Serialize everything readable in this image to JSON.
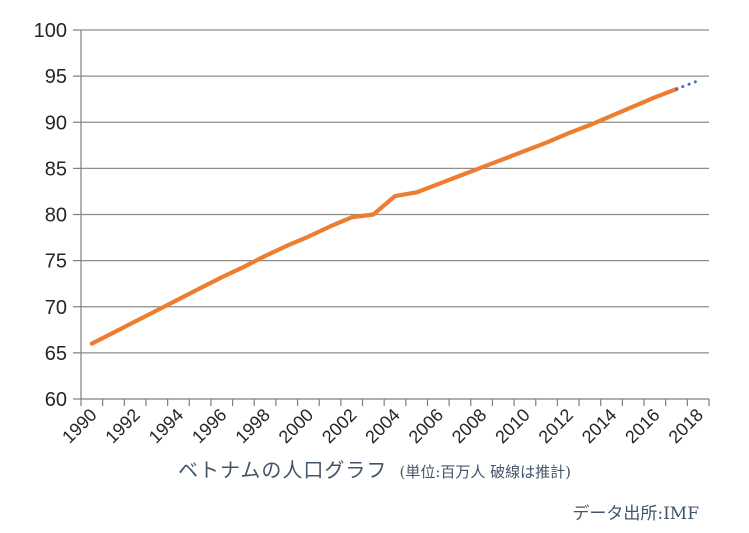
{
  "chart_data": {
    "type": "line",
    "title": "ベトナムの人口グラフ",
    "subtitle": "(単位:百万人 破線は推計)",
    "source": "データ出所:IMF",
    "years": [
      1990,
      1991,
      1992,
      1993,
      1994,
      1995,
      1996,
      1997,
      1998,
      1999,
      2000,
      2001,
      2002,
      2003,
      2004,
      2005,
      2006,
      2007,
      2008,
      2009,
      2010,
      2011,
      2012,
      2013,
      2014,
      2015,
      2016,
      2017,
      2018
    ],
    "values": [
      66.0,
      67.2,
      68.4,
      69.6,
      70.8,
      72.0,
      73.2,
      74.3,
      75.5,
      76.6,
      77.6,
      78.7,
      79.7,
      80.0,
      82.0,
      82.4,
      83.3,
      84.2,
      85.1,
      86.0,
      86.9,
      87.8,
      88.8,
      89.7,
      90.7,
      91.7,
      92.7,
      93.6,
      94.5
    ],
    "estimate_from_year": 2017,
    "ylim": [
      60,
      100
    ],
    "ytick_step": 5,
    "xtick_label_step": 2,
    "grid": true,
    "legend_position": "none",
    "colors": {
      "line": "#ED7D31",
      "estimate": "#4472C4",
      "grid": "#8C8C8C",
      "axis": "#7F7F7F",
      "tick_label": "#262626",
      "title": "#44546A",
      "source": "#44546A",
      "background": "#FFFFFF"
    }
  }
}
